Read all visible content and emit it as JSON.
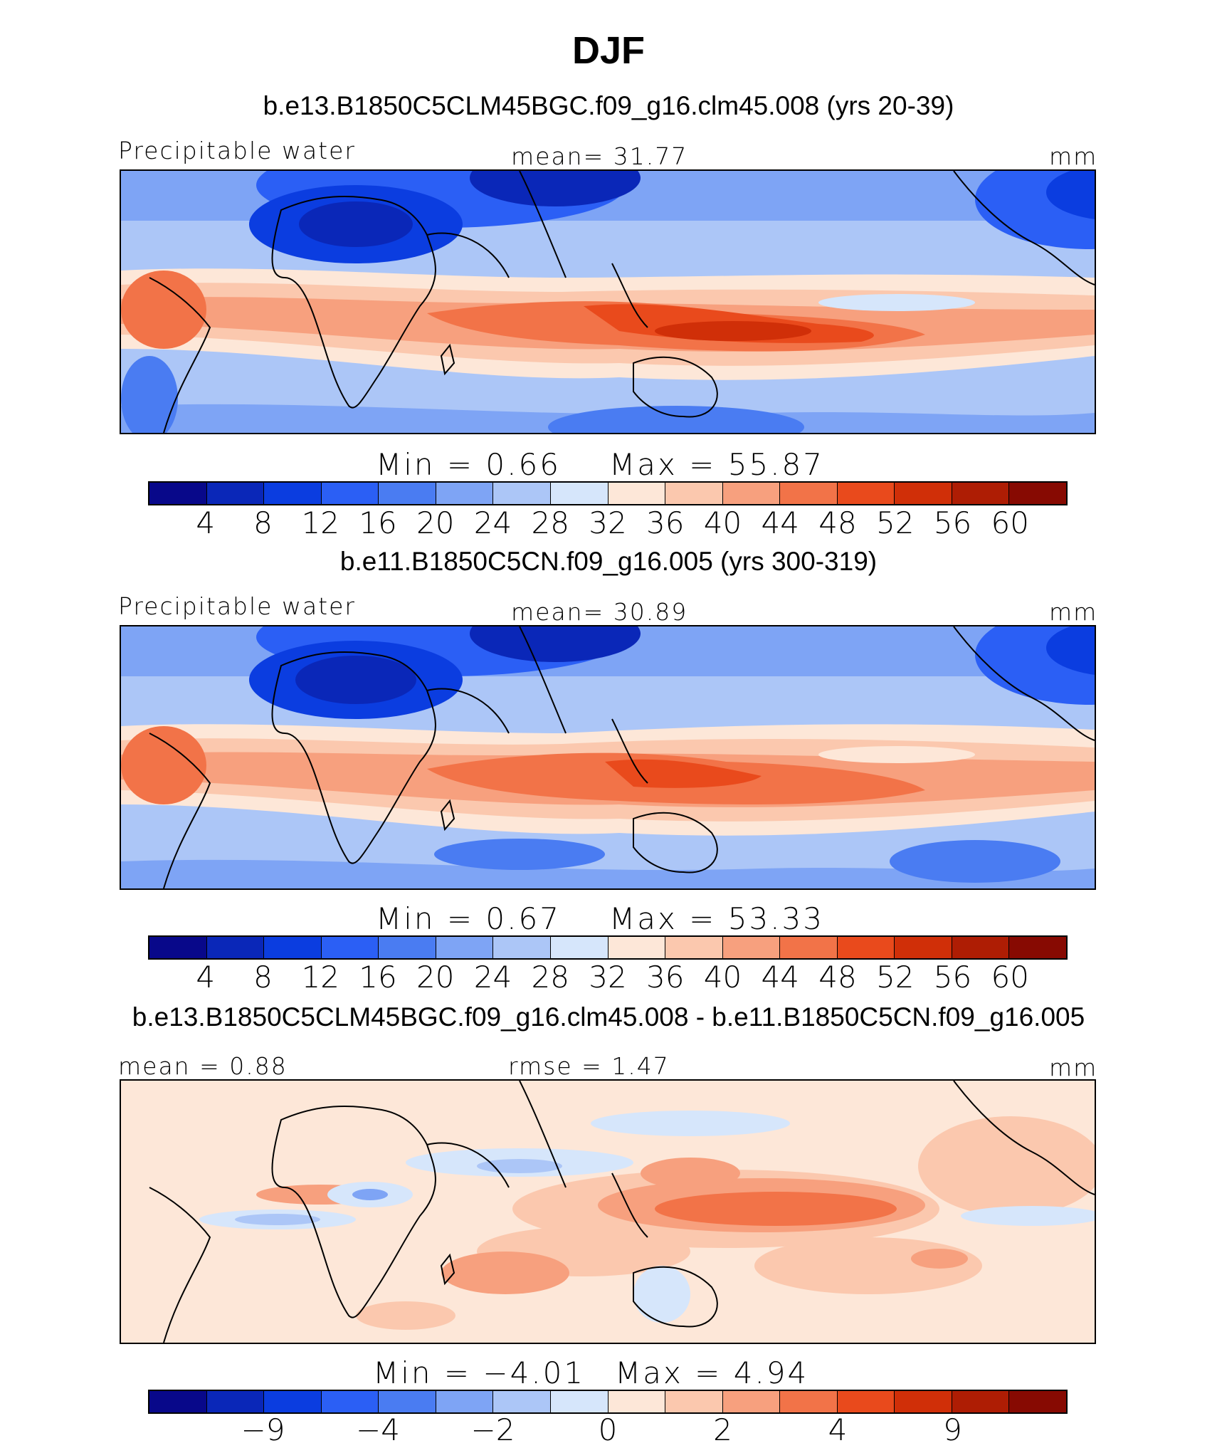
{
  "title": "DJF",
  "palette": [
    "#08088a",
    "#0a27b8",
    "#0b3de0",
    "#2b5ff5",
    "#4a7cf2",
    "#7ea4f5",
    "#acc6f7",
    "#d6e6fb",
    "#fde7d8",
    "#fbc8ae",
    "#f7a07e",
    "#f27348",
    "#e94a1c",
    "#d02f08",
    "#ae1d04",
    "#870a02"
  ],
  "panels": [
    {
      "subtitle": "b.e13.B1850C5CLM45BGC.f09_g16.clm45.008 (yrs 20-39)",
      "left_label": "Precipitable water",
      "center_label": "mean=   31.77",
      "unit": "mm",
      "min_text": "Min  =     0.66",
      "max_text": "Max  =     55.87",
      "tick_labels": [
        "4",
        "8",
        "12",
        "16",
        "20",
        "24",
        "28",
        "32",
        "36",
        "40",
        "44",
        "48",
        "52",
        "56",
        "60"
      ]
    },
    {
      "subtitle": "b.e11.B1850C5CN.f09_g16.005 (yrs 300-319)",
      "left_label": "Precipitable water",
      "center_label": "mean=   30.89",
      "unit": "mm",
      "min_text": "Min  =     0.67",
      "max_text": "Max  =     53.33",
      "tick_labels": [
        "4",
        "8",
        "12",
        "16",
        "20",
        "24",
        "28",
        "32",
        "36",
        "40",
        "44",
        "48",
        "52",
        "56",
        "60"
      ]
    },
    {
      "subtitle": "b.e13.B1850C5CLM45BGC.f09_g16.clm45.008 - b.e11.B1850C5CN.f09_g16.005",
      "left_label": "mean =    0.88",
      "center_label": "rmse =    1.47",
      "unit": "mm",
      "min_text": "Min  =   −4.01",
      "max_text": "Max  =     4.94",
      "tick_labels": [
        "−9",
        "−4",
        "−2",
        "0",
        "2",
        "4",
        "9"
      ]
    }
  ]
}
